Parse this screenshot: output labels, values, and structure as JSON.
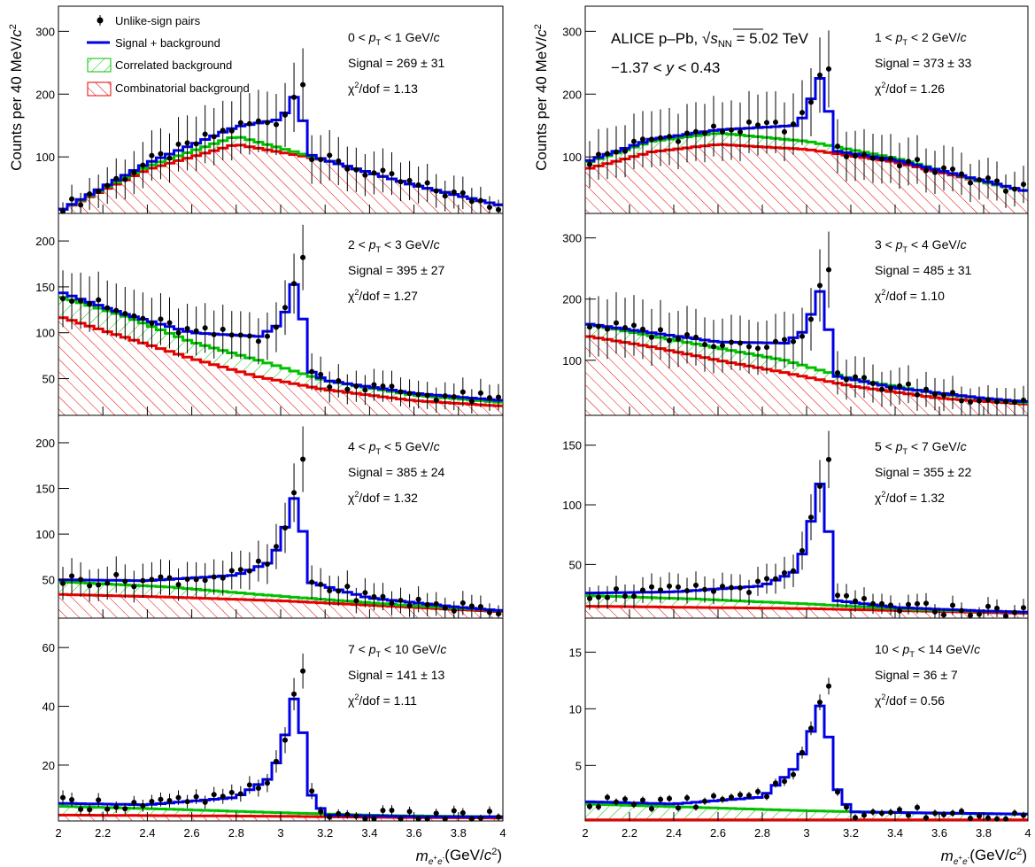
{
  "figure": {
    "ylabel_main": "Counts per 40 MeV/",
    "ylabel_c": "c",
    "ylabel_exp": "2",
    "xlabel_m": "m",
    "xlabel_sub": "e",
    "xlabel_sub_plus": "+",
    "xlabel_sub2": "e",
    "xlabel_sub_minus": "-",
    "xlabel_units_pre": "(GeV/",
    "xlabel_units_c": "c",
    "xlabel_units_exp": "2",
    "xlabel_units_post": ")",
    "header_experiment": "ALICE  p–Pb, ",
    "header_sqrt": "√",
    "header_s": "s",
    "header_nn": "NN",
    "header_energy": " = 5.02 TeV",
    "header_rapidity_pre": "−1.37 < ",
    "header_rapidity_y": "y",
    "header_rapidity_post": " < 0.43",
    "colors": {
      "signal_bkg": "#0000e6",
      "correlated": "#00c000",
      "combinatorial": "#e60000",
      "data": "#000000"
    }
  },
  "legend": {
    "data": "Unlike-sign pairs",
    "signal_bkg": "Signal + background",
    "correlated": "Correlated background",
    "combinatorial": "Combinatorial background"
  },
  "chart_data": [
    {
      "type": "line",
      "pt_pre": "0 < ",
      "pt_post": " < 1 GeV/",
      "pt_c": "c",
      "signal": "Signal = 269 ± 31",
      "chi2_pre": "χ",
      "chi2_exp": "2",
      "chi2_post": "/dof = 1.13",
      "ylim": [
        10,
        340
      ],
      "yticks": [
        "100",
        "200",
        "300"
      ],
      "x_range": [
        2,
        4
      ],
      "comb": [
        [
          2,
          13
        ],
        [
          2.4,
          80
        ],
        [
          2.8,
          120
        ],
        [
          3.2,
          95
        ],
        [
          3.6,
          55
        ],
        [
          4,
          22
        ]
      ],
      "corr": [
        [
          2,
          13
        ],
        [
          2.4,
          85
        ],
        [
          2.8,
          133
        ],
        [
          3.2,
          95
        ],
        [
          3.6,
          55
        ],
        [
          4,
          22
        ]
      ],
      "sig": [
        [
          2,
          13
        ],
        [
          2.4,
          90
        ],
        [
          2.8,
          148
        ],
        [
          3.0,
          160
        ],
        [
          3.04,
          180
        ],
        [
          3.08,
          210
        ],
        [
          3.12,
          105
        ],
        [
          3.2,
          95
        ],
        [
          3.6,
          55
        ],
        [
          4,
          22
        ]
      ],
      "peak_x": 3.1,
      "peak_y": 215
    },
    {
      "type": "line",
      "pt_pre": "1 < ",
      "pt_post": " < 2 GeV/",
      "pt_c": "c",
      "signal": "Signal = 373 ± 33",
      "chi2_pre": "χ",
      "chi2_exp": "2",
      "chi2_post": "/dof = 1.26",
      "ylim": [
        10,
        340
      ],
      "yticks": [
        "100",
        "200",
        "300"
      ],
      "x_range": [
        2,
        4
      ],
      "comb": [
        [
          2,
          80
        ],
        [
          2.3,
          108
        ],
        [
          2.6,
          120
        ],
        [
          3.0,
          112
        ],
        [
          3.4,
          92
        ],
        [
          3.8,
          60
        ],
        [
          4,
          45
        ]
      ],
      "corr": [
        [
          2,
          90
        ],
        [
          2.3,
          125
        ],
        [
          2.6,
          138
        ],
        [
          3.0,
          125
        ],
        [
          3.4,
          98
        ],
        [
          3.8,
          60
        ],
        [
          4,
          45
        ]
      ],
      "sig": [
        [
          2,
          92
        ],
        [
          2.3,
          128
        ],
        [
          2.6,
          143
        ],
        [
          2.95,
          150
        ],
        [
          3.0,
          170
        ],
        [
          3.04,
          215
        ],
        [
          3.08,
          235
        ],
        [
          3.12,
          110
        ],
        [
          3.4,
          95
        ],
        [
          3.8,
          62
        ],
        [
          4,
          45
        ]
      ],
      "peak_x": 3.1,
      "peak_y": 240
    },
    {
      "type": "line",
      "pt_pre": "2 < ",
      "pt_post": " < 3 GeV/",
      "pt_c": "c",
      "signal": "Signal = 395 ± 27",
      "chi2_pre": "χ",
      "chi2_exp": "2",
      "chi2_post": "/dof = 1.27",
      "ylim": [
        10,
        230
      ],
      "yticks": [
        "50",
        "100",
        "150",
        "200"
      ],
      "x_range": [
        2,
        4
      ],
      "comb": [
        [
          2,
          118
        ],
        [
          2.3,
          95
        ],
        [
          2.6,
          72
        ],
        [
          2.9,
          52
        ],
        [
          3.2,
          38
        ],
        [
          3.6,
          26
        ],
        [
          4,
          20
        ]
      ],
      "corr": [
        [
          2,
          140
        ],
        [
          2.3,
          118
        ],
        [
          2.6,
          90
        ],
        [
          2.9,
          70
        ],
        [
          3.2,
          48
        ],
        [
          3.6,
          32
        ],
        [
          4,
          24
        ]
      ],
      "sig": [
        [
          2,
          145
        ],
        [
          2.3,
          120
        ],
        [
          2.6,
          100
        ],
        [
          2.9,
          96
        ],
        [
          3.0,
          110
        ],
        [
          3.04,
          135
        ],
        [
          3.08,
          170
        ],
        [
          3.12,
          60
        ],
        [
          3.2,
          48
        ],
        [
          3.6,
          34
        ],
        [
          4,
          26
        ]
      ],
      "peak_x": 3.1,
      "peak_y": 182
    },
    {
      "type": "line",
      "pt_pre": "3 < ",
      "pt_post": " < 4 GeV/",
      "pt_c": "c",
      "signal": "Signal = 485 ± 31",
      "chi2_pre": "χ",
      "chi2_exp": "2",
      "chi2_post": "/dof = 1.10",
      "ylim": [
        10,
        340
      ],
      "yticks": [
        "100",
        "200",
        "300"
      ],
      "x_range": [
        2,
        4
      ],
      "comb": [
        [
          2,
          140
        ],
        [
          2.3,
          122
        ],
        [
          2.6,
          100
        ],
        [
          2.9,
          80
        ],
        [
          3.2,
          58
        ],
        [
          3.6,
          38
        ],
        [
          4,
          28
        ]
      ],
      "corr": [
        [
          2,
          160
        ],
        [
          2.3,
          140
        ],
        [
          2.6,
          120
        ],
        [
          2.9,
          100
        ],
        [
          3.2,
          70
        ],
        [
          3.6,
          45
        ],
        [
          4,
          30
        ]
      ],
      "sig": [
        [
          2,
          160
        ],
        [
          2.3,
          145
        ],
        [
          2.6,
          130
        ],
        [
          2.9,
          128
        ],
        [
          3.0,
          150
        ],
        [
          3.04,
          200
        ],
        [
          3.08,
          225
        ],
        [
          3.12,
          75
        ],
        [
          3.4,
          55
        ],
        [
          3.8,
          38
        ],
        [
          4,
          32
        ]
      ],
      "peak_x": 3.1,
      "peak_y": 248
    },
    {
      "type": "line",
      "pt_pre": "4 < ",
      "pt_post": " < 5 GeV/",
      "pt_c": "c",
      "signal": "Signal = 385 ± 24",
      "chi2_pre": "χ",
      "chi2_exp": "2",
      "chi2_post": "/dof = 1.32",
      "ylim": [
        8,
        230
      ],
      "yticks": [
        "50",
        "100",
        "150",
        "200"
      ],
      "x_range": [
        2,
        4
      ],
      "comb": [
        [
          2,
          34
        ],
        [
          2.5,
          31
        ],
        [
          3.0,
          27
        ],
        [
          3.5,
          21
        ],
        [
          4,
          15
        ]
      ],
      "corr": [
        [
          2,
          48
        ],
        [
          2.5,
          42
        ],
        [
          3.0,
          32
        ],
        [
          3.5,
          23
        ],
        [
          4,
          16
        ]
      ],
      "sig": [
        [
          2,
          50
        ],
        [
          2.4,
          49
        ],
        [
          2.8,
          55
        ],
        [
          2.96,
          70
        ],
        [
          3.04,
          120
        ],
        [
          3.08,
          158
        ],
        [
          3.12,
          48
        ],
        [
          3.4,
          30
        ],
        [
          3.8,
          20
        ],
        [
          4,
          16
        ]
      ],
      "peak_x": 3.1,
      "peak_y": 182
    },
    {
      "type": "line",
      "pt_pre": "5 < ",
      "pt_post": " < 7 GeV/",
      "pt_c": "c",
      "signal": "Signal = 355 ± 22",
      "chi2_pre": "χ",
      "chi2_exp": "2",
      "chi2_post": "/dof = 1.32",
      "ylim": [
        5,
        175
      ],
      "yticks": [
        "50",
        "100",
        "150"
      ],
      "x_range": [
        2,
        4
      ],
      "comb": [
        [
          2,
          15
        ],
        [
          2.5,
          14
        ],
        [
          3.0,
          13
        ],
        [
          3.5,
          11
        ],
        [
          4,
          9
        ]
      ],
      "corr": [
        [
          2,
          24
        ],
        [
          2.5,
          21
        ],
        [
          3.0,
          17
        ],
        [
          3.5,
          12
        ],
        [
          4,
          10
        ]
      ],
      "sig": [
        [
          2,
          26
        ],
        [
          2.4,
          27
        ],
        [
          2.8,
          32
        ],
        [
          2.96,
          45
        ],
        [
          3.04,
          100
        ],
        [
          3.08,
          135
        ],
        [
          3.12,
          20
        ],
        [
          3.4,
          14
        ],
        [
          3.8,
          11
        ],
        [
          4,
          10
        ]
      ],
      "peak_x": 3.1,
      "peak_y": 138
    },
    {
      "type": "line",
      "pt_pre": "7 < ",
      "pt_post": " < 10 GeV/",
      "pt_c": "c",
      "signal": "Signal = 141 ± 13",
      "chi2_pre": "χ",
      "chi2_exp": "2",
      "chi2_post": "/dof = 1.11",
      "ylim": [
        1,
        70
      ],
      "yticks": [
        "20",
        "40",
        "60"
      ],
      "x_range": [
        2,
        4
      ],
      "comb": [
        [
          2,
          3
        ],
        [
          2.5,
          2.8
        ],
        [
          3.0,
          2.6
        ],
        [
          3.5,
          2.2
        ],
        [
          4,
          2
        ]
      ],
      "corr": [
        [
          2,
          6
        ],
        [
          2.5,
          5
        ],
        [
          3.0,
          3.8
        ],
        [
          3.5,
          2.8
        ],
        [
          4,
          2.4
        ]
      ],
      "sig": [
        [
          2,
          7
        ],
        [
          2.4,
          6.5
        ],
        [
          2.8,
          9
        ],
        [
          2.96,
          16
        ],
        [
          3.04,
          35
        ],
        [
          3.08,
          50
        ],
        [
          3.12,
          12
        ],
        [
          3.2,
          3
        ],
        [
          3.6,
          2.5
        ],
        [
          4,
          2.4
        ]
      ],
      "peak_x": 3.1,
      "peak_y": 52
    },
    {
      "type": "line",
      "pt_pre": "10 < ",
      "pt_post": " < 14 GeV/",
      "pt_c": "c",
      "signal": "Signal = 36 ± 7",
      "chi2_pre": "χ",
      "chi2_exp": "2",
      "chi2_post": "/dof = 0.56",
      "ylim": [
        0.1,
        18
      ],
      "yticks": [
        "5",
        "10",
        "15"
      ],
      "x_range": [
        2,
        4
      ],
      "comb": [
        [
          2,
          0.2
        ],
        [
          4,
          0.2
        ]
      ],
      "corr": [
        [
          2,
          1.6
        ],
        [
          2.5,
          1.3
        ],
        [
          3.0,
          1.0
        ],
        [
          3.5,
          0.8
        ],
        [
          4,
          0.7
        ]
      ],
      "sig": [
        [
          2,
          1.8
        ],
        [
          2.4,
          1.6
        ],
        [
          2.8,
          2.2
        ],
        [
          2.96,
          5
        ],
        [
          3.04,
          9
        ],
        [
          3.08,
          11.5
        ],
        [
          3.12,
          3.5
        ],
        [
          3.2,
          0.9
        ],
        [
          3.6,
          0.8
        ],
        [
          4,
          0.7
        ]
      ],
      "peak_x": 3.1,
      "peak_y": 12
    }
  ],
  "x_axis": {
    "ticks": [
      "2",
      "2.2",
      "2.4",
      "2.6",
      "2.8",
      "3",
      "3.2",
      "3.4",
      "3.6",
      "3.8",
      "4"
    ]
  }
}
